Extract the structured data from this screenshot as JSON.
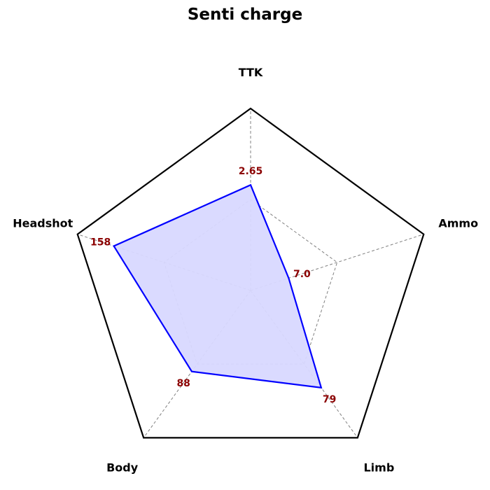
{
  "chart_data": {
    "type": "radar",
    "title": "Senti charge",
    "axes": [
      "TTK",
      "Ammo",
      "Limb",
      "Body",
      "Headshot"
    ],
    "values_normalized": [
      0.58,
      0.22,
      0.66,
      0.55,
      0.79
    ],
    "value_labels": [
      "2.65",
      "7.0",
      "79",
      "88",
      "158"
    ],
    "rings": [
      0.5,
      1.0
    ],
    "grid": true,
    "colors": {
      "series_line": "#0000ff",
      "series_fill": "#d8d8ff",
      "value_label": "#8b0000",
      "outline": "#000000",
      "grid": "#808080"
    }
  }
}
